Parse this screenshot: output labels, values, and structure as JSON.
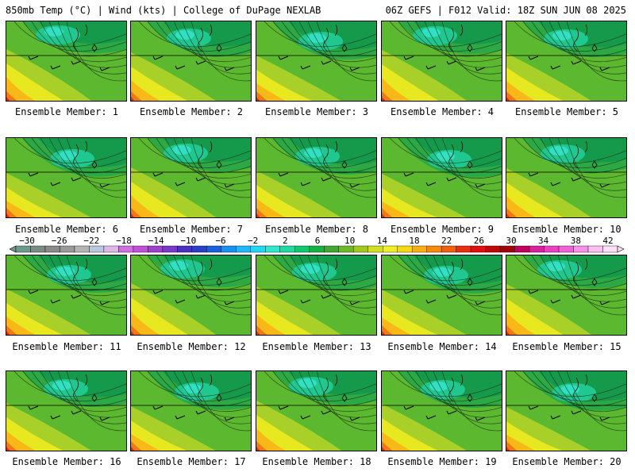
{
  "header": {
    "left": "850mb Temp (°C) | Wind (kts) | College of DuPage NEXLAB",
    "right": "06Z GEFS | F012 Valid: 18Z SUN JUN 08 2025"
  },
  "colorbar": {
    "labels": [
      "−30",
      "−26",
      "−22",
      "−18",
      "−14",
      "−10",
      "−6",
      "−2",
      "2",
      "6",
      "10",
      "14",
      "18",
      "22",
      "26",
      "30",
      "34",
      "38",
      "42"
    ],
    "colors": [
      "#6e9a8a",
      "#7c8c84",
      "#8a8a8a",
      "#9a9a9a",
      "#b4b4b4",
      "#b8c8e0",
      "#e0b8e8",
      "#d070e0",
      "#c050d8",
      "#a040d0",
      "#7a38c8",
      "#4a30c0",
      "#2840c8",
      "#1a60e0",
      "#1890f0",
      "#20b8f8",
      "#20d8f0",
      "#30e8d0",
      "#20d8a0",
      "#10c870",
      "#18b040",
      "#40a830",
      "#70b828",
      "#a0c820",
      "#d0e020",
      "#f0f020",
      "#f8d810",
      "#f8b010",
      "#f88810",
      "#f06010",
      "#e83010",
      "#e01010",
      "#c00808",
      "#a00408",
      "#c00060",
      "#d820a0",
      "#e840c0",
      "#f060d8",
      "#f890e8",
      "#fac0f0",
      "#fde0f8"
    ]
  },
  "panels": [
    {
      "caption": "Ensemble Member: 1"
    },
    {
      "caption": "Ensemble Member: 2"
    },
    {
      "caption": "Ensemble Member: 3"
    },
    {
      "caption": "Ensemble Member: 4"
    },
    {
      "caption": "Ensemble Member: 5"
    },
    {
      "caption": "Ensemble Member: 6"
    },
    {
      "caption": "Ensemble Member: 7"
    },
    {
      "caption": "Ensemble Member: 8"
    },
    {
      "caption": "Ensemble Member: 9"
    },
    {
      "caption": "Ensemble Member: 10"
    },
    {
      "caption": "Ensemble Member: 11"
    },
    {
      "caption": "Ensemble Member: 12"
    },
    {
      "caption": "Ensemble Member: 13"
    },
    {
      "caption": "Ensemble Member: 14"
    },
    {
      "caption": "Ensemble Member: 15"
    },
    {
      "caption": "Ensemble Member: 16"
    },
    {
      "caption": "Ensemble Member: 17"
    },
    {
      "caption": "Ensemble Member: 18"
    },
    {
      "caption": "Ensemble Member: 19"
    },
    {
      "caption": "Ensemble Member: 20"
    }
  ],
  "map_colors": {
    "deep_green": "#149a4a",
    "green": "#2ca844",
    "teal": "#20c890",
    "cyan": "#30e0c0",
    "light_green": "#5cb82e",
    "yellow_green": "#a8d028",
    "yellow": "#e8e820",
    "orange": "#f8b818",
    "dark_orange": "#f07818",
    "red": "#e02810"
  }
}
